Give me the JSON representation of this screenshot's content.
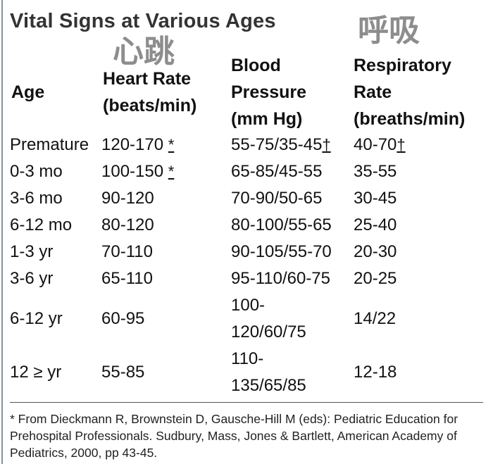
{
  "title": "Vital Signs at Various Ages",
  "annotations": {
    "heart": "心跳",
    "respiratory": "呼吸"
  },
  "headers": {
    "age": "Age",
    "heart_rate": [
      "Heart Rate",
      "(beats/min)"
    ],
    "blood_pressure": [
      "Blood",
      "Pressure",
      "(mm Hg)"
    ],
    "respiratory_rate": [
      "Respiratory",
      "Rate",
      "(breaths/min)"
    ]
  },
  "rows": [
    {
      "age": "Premature",
      "hr": "120-170",
      "hr_mark": "*",
      "bp": "55-75/35-45",
      "bp_mark": "†",
      "rr": "40-70",
      "rr_mark": "†"
    },
    {
      "age": "0-3 mo",
      "hr": "100-150",
      "hr_mark": "*",
      "bp": "65-85/45-55",
      "rr": "35-55"
    },
    {
      "age": "3-6 mo",
      "hr": "90-120",
      "bp": "70-90/50-65",
      "rr": "30-45"
    },
    {
      "age": "6-12 mo",
      "hr": "80-120",
      "bp": "80-100/55-65",
      "rr": "25-40"
    },
    {
      "age": "1-3 yr",
      "hr": "70-110",
      "bp": "90-105/55-70",
      "rr": "20-30"
    },
    {
      "age": "3-6 yr",
      "hr": "65-110",
      "bp": "95-110/60-75",
      "rr": "20-25"
    },
    {
      "age": "6-12 yr",
      "hr": "60-95",
      "bp": "100-120/60/75",
      "rr": "14/22"
    },
    {
      "age": "12 ≥ yr",
      "hr": "55-85",
      "bp": "110-135/65/85",
      "rr": "12-18"
    }
  ],
  "footnote": "* From Dieckmann R, Brownstein D, Gausche-Hill M (eds): Pediatric Education for Prehospital Professionals. Sudbury, Mass, Jones & Bartlett, American Academy of Pediatrics, 2000, pp 43-45."
}
